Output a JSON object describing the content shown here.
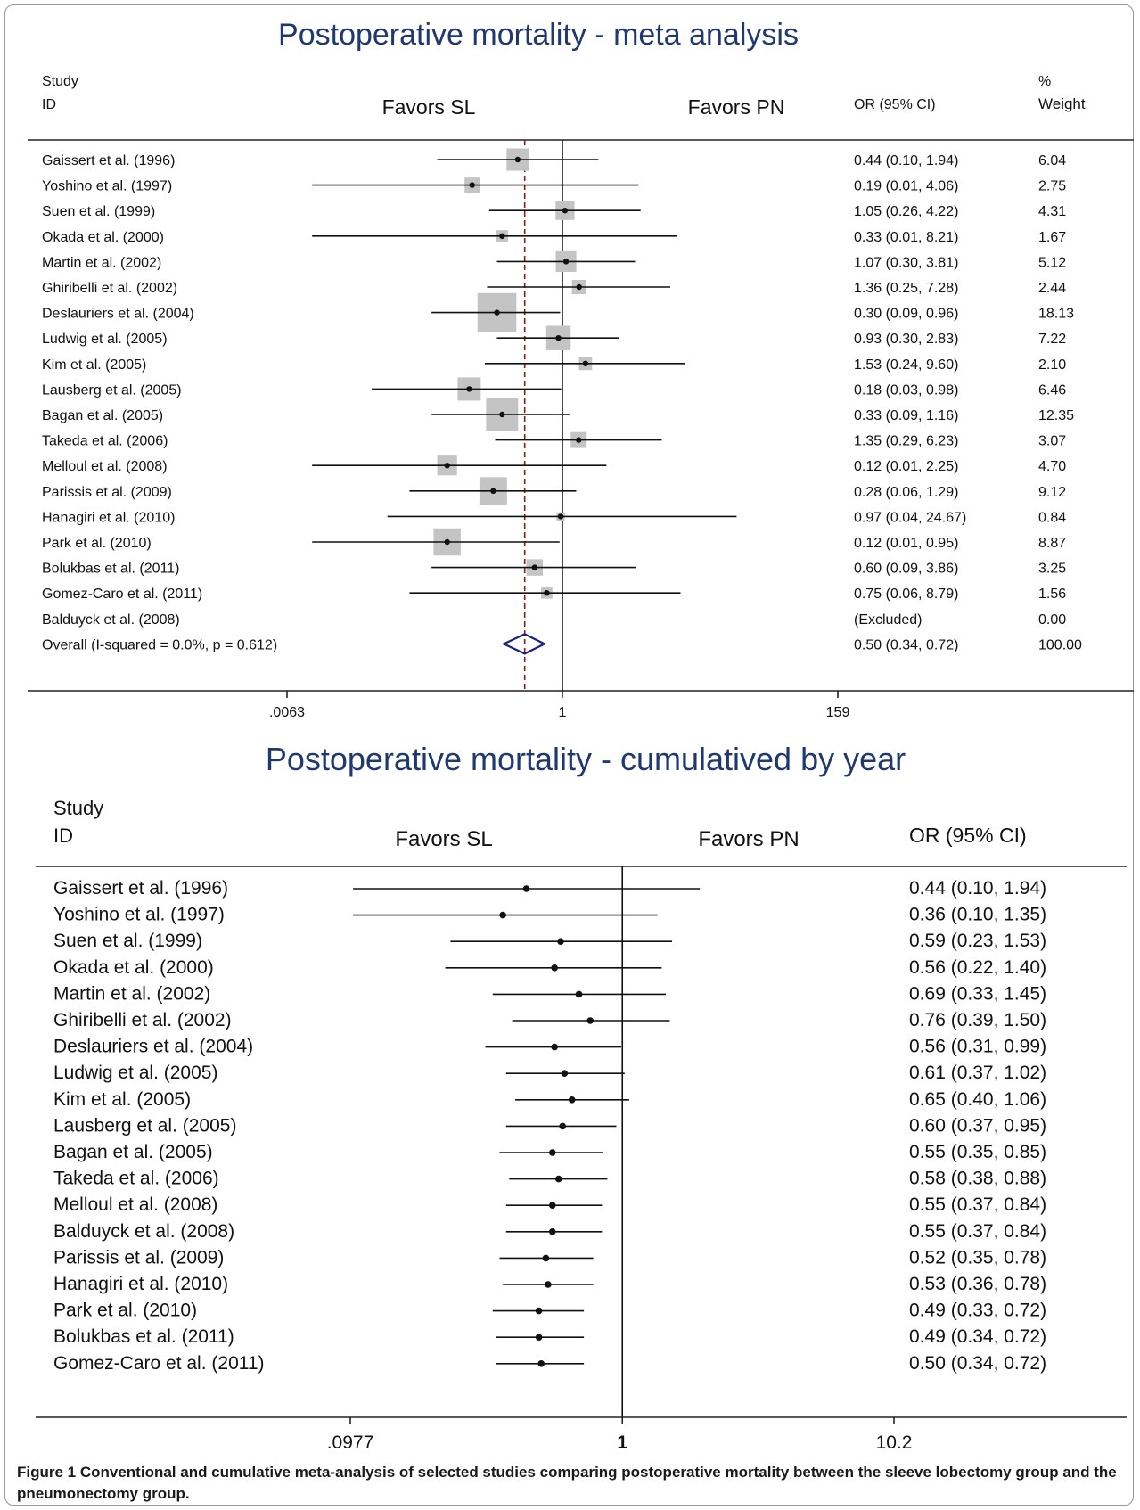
{
  "colors": {
    "title": "#1f3870",
    "box": "#c4c4c4",
    "diamond": "#1a237e",
    "ref_line": "#8b1a1a",
    "text": "#111111"
  },
  "chart_data": [
    {
      "type": "forest",
      "title": "Postoperative mortality - meta analysis",
      "header_study": "Study",
      "header_id": "ID",
      "header_favors_left": "Favors SL",
      "header_favors_right": "Favors PN",
      "header_or": "OR (95% CI)",
      "header_weight_pct": "%",
      "header_weight": "Weight",
      "x_scale": "log",
      "xlim": [
        0.0063,
        159
      ],
      "x_ticks": [
        ".0063",
        "1",
        "159"
      ],
      "x_tick_values": [
        0.0063,
        1,
        159
      ],
      "null_value": 1,
      "pooled_line_value": 0.5,
      "studies": [
        {
          "label": "Gaissert et al. (1996)",
          "or": 0.44,
          "lo": 0.1,
          "hi": 1.94,
          "ci_text": "0.44 (0.10, 1.94)",
          "weight": 6.04,
          "weight_text": "6.04"
        },
        {
          "label": "Yoshino et al. (1997)",
          "or": 0.19,
          "lo": 0.01,
          "hi": 4.06,
          "ci_text": "0.19 (0.01, 4.06)",
          "weight": 2.75,
          "weight_text": "2.75"
        },
        {
          "label": "Suen et al. (1999)",
          "or": 1.05,
          "lo": 0.26,
          "hi": 4.22,
          "ci_text": "1.05 (0.26, 4.22)",
          "weight": 4.31,
          "weight_text": "4.31"
        },
        {
          "label": "Okada et al. (2000)",
          "or": 0.33,
          "lo": 0.01,
          "hi": 8.21,
          "ci_text": "0.33 (0.01, 8.21)",
          "weight": 1.67,
          "weight_text": "1.67"
        },
        {
          "label": "Martin et al. (2002)",
          "or": 1.07,
          "lo": 0.3,
          "hi": 3.81,
          "ci_text": "1.07 (0.30, 3.81)",
          "weight": 5.12,
          "weight_text": "5.12"
        },
        {
          "label": "Ghiribelli et al. (2002)",
          "or": 1.36,
          "lo": 0.25,
          "hi": 7.28,
          "ci_text": "1.36 (0.25, 7.28)",
          "weight": 2.44,
          "weight_text": "2.44"
        },
        {
          "label": "Deslauriers et al. (2004)",
          "or": 0.3,
          "lo": 0.09,
          "hi": 0.96,
          "ci_text": "0.30 (0.09, 0.96)",
          "weight": 18.13,
          "weight_text": "18.13"
        },
        {
          "label": "Ludwig et al. (2005)",
          "or": 0.93,
          "lo": 0.3,
          "hi": 2.83,
          "ci_text": "0.93 (0.30, 2.83)",
          "weight": 7.22,
          "weight_text": "7.22"
        },
        {
          "label": "Kim et al. (2005)",
          "or": 1.53,
          "lo": 0.24,
          "hi": 9.6,
          "ci_text": "1.53 (0.24, 9.60)",
          "weight": 2.1,
          "weight_text": "2.10"
        },
        {
          "label": "Lausberg et al. (2005)",
          "or": 0.18,
          "lo": 0.03,
          "hi": 0.98,
          "ci_text": "0.18 (0.03, 0.98)",
          "weight": 6.46,
          "weight_text": "6.46"
        },
        {
          "label": "Bagan et al. (2005)",
          "or": 0.33,
          "lo": 0.09,
          "hi": 1.16,
          "ci_text": "0.33 (0.09, 1.16)",
          "weight": 12.35,
          "weight_text": "12.35"
        },
        {
          "label": "Takeda et al. (2006)",
          "or": 1.35,
          "lo": 0.29,
          "hi": 6.23,
          "ci_text": "1.35 (0.29, 6.23)",
          "weight": 3.07,
          "weight_text": "3.07"
        },
        {
          "label": "Melloul et al. (2008)",
          "or": 0.12,
          "lo": 0.01,
          "hi": 2.25,
          "ci_text": "0.12 (0.01, 2.25)",
          "weight": 4.7,
          "weight_text": "4.70"
        },
        {
          "label": "Parissis et al. (2009)",
          "or": 0.28,
          "lo": 0.06,
          "hi": 1.29,
          "ci_text": "0.28 (0.06, 1.29)",
          "weight": 9.12,
          "weight_text": "9.12"
        },
        {
          "label": "Hanagiri et al. (2010)",
          "or": 0.97,
          "lo": 0.04,
          "hi": 24.67,
          "ci_text": "0.97 (0.04, 24.67)",
          "weight": 0.84,
          "weight_text": "0.84"
        },
        {
          "label": "Park et al. (2010)",
          "or": 0.12,
          "lo": 0.01,
          "hi": 0.95,
          "ci_text": "0.12 (0.01, 0.95)",
          "weight": 8.87,
          "weight_text": "8.87"
        },
        {
          "label": "Bolukbas et al. (2011)",
          "or": 0.6,
          "lo": 0.09,
          "hi": 3.86,
          "ci_text": "0.60 (0.09, 3.86)",
          "weight": 3.25,
          "weight_text": "3.25"
        },
        {
          "label": "Gomez-Caro et al. (2011)",
          "or": 0.75,
          "lo": 0.06,
          "hi": 8.79,
          "ci_text": "0.75 (0.06, 8.79)",
          "weight": 1.56,
          "weight_text": "1.56"
        },
        {
          "label": "Balduyck et al. (2008)",
          "or": null,
          "lo": null,
          "hi": null,
          "ci_text": "(Excluded)",
          "weight": 0.0,
          "weight_text": "0.00"
        }
      ],
      "overall": {
        "label": "Overall  (I-squared = 0.0%, p = 0.612)",
        "or": 0.5,
        "lo": 0.34,
        "hi": 0.72,
        "ci_text": "0.50 (0.34, 0.72)",
        "weight": 100.0,
        "weight_text": "100.00"
      }
    },
    {
      "type": "forest",
      "title": "Postoperative mortality - cumulatived by year",
      "header_study": "Study",
      "header_id": "ID",
      "header_favors_left": "Favors SL",
      "header_favors_right": "Favors PN",
      "header_or": "OR (95% CI)",
      "x_scale": "log",
      "xlim": [
        0.0977,
        10.2
      ],
      "x_ticks": [
        ".0977",
        "1",
        "10.2"
      ],
      "x_tick_values": [
        0.0977,
        1,
        10.2
      ],
      "null_value": 1,
      "studies": [
        {
          "label": "Gaissert et al. (1996)",
          "or": 0.44,
          "lo": 0.1,
          "hi": 1.94,
          "ci_text": "0.44 (0.10, 1.94)"
        },
        {
          "label": "Yoshino et al. (1997)",
          "or": 0.36,
          "lo": 0.1,
          "hi": 1.35,
          "ci_text": "0.36 (0.10, 1.35)"
        },
        {
          "label": "Suen et al. (1999)",
          "or": 0.59,
          "lo": 0.23,
          "hi": 1.53,
          "ci_text": "0.59 (0.23, 1.53)"
        },
        {
          "label": "Okada et al. (2000)",
          "or": 0.56,
          "lo": 0.22,
          "hi": 1.4,
          "ci_text": "0.56 (0.22, 1.40)"
        },
        {
          "label": "Martin et al. (2002)",
          "or": 0.69,
          "lo": 0.33,
          "hi": 1.45,
          "ci_text": "0.69 (0.33, 1.45)"
        },
        {
          "label": "Ghiribelli et al. (2002)",
          "or": 0.76,
          "lo": 0.39,
          "hi": 1.5,
          "ci_text": "0.76 (0.39, 1.50)"
        },
        {
          "label": "Deslauriers et al. (2004)",
          "or": 0.56,
          "lo": 0.31,
          "hi": 0.99,
          "ci_text": "0.56 (0.31, 0.99)"
        },
        {
          "label": "Ludwig et al. (2005)",
          "or": 0.61,
          "lo": 0.37,
          "hi": 1.02,
          "ci_text": "0.61 (0.37, 1.02)"
        },
        {
          "label": "Kim et al. (2005)",
          "or": 0.65,
          "lo": 0.4,
          "hi": 1.06,
          "ci_text": "0.65 (0.40, 1.06)"
        },
        {
          "label": "Lausberg et al. (2005)",
          "or": 0.6,
          "lo": 0.37,
          "hi": 0.95,
          "ci_text": "0.60 (0.37, 0.95)"
        },
        {
          "label": "Bagan et al. (2005)",
          "or": 0.55,
          "lo": 0.35,
          "hi": 0.85,
          "ci_text": "0.55 (0.35, 0.85)"
        },
        {
          "label": "Takeda et al. (2006)",
          "or": 0.58,
          "lo": 0.38,
          "hi": 0.88,
          "ci_text": "0.58 (0.38, 0.88)"
        },
        {
          "label": "Melloul et al. (2008)",
          "or": 0.55,
          "lo": 0.37,
          "hi": 0.84,
          "ci_text": "0.55 (0.37, 0.84)"
        },
        {
          "label": "Balduyck et al. (2008)",
          "or": 0.55,
          "lo": 0.37,
          "hi": 0.84,
          "ci_text": "0.55 (0.37, 0.84)"
        },
        {
          "label": "Parissis et al. (2009)",
          "or": 0.52,
          "lo": 0.35,
          "hi": 0.78,
          "ci_text": "0.52 (0.35, 0.78)"
        },
        {
          "label": "Hanagiri et al. (2010)",
          "or": 0.53,
          "lo": 0.36,
          "hi": 0.78,
          "ci_text": "0.53 (0.36, 0.78)"
        },
        {
          "label": "Park et al. (2010)",
          "or": 0.49,
          "lo": 0.33,
          "hi": 0.72,
          "ci_text": "0.49 (0.33, 0.72)"
        },
        {
          "label": "Bolukbas et al. (2011)",
          "or": 0.49,
          "lo": 0.34,
          "hi": 0.72,
          "ci_text": "0.49 (0.34, 0.72)"
        },
        {
          "label": "Gomez-Caro et al. (2011)",
          "or": 0.5,
          "lo": 0.34,
          "hi": 0.72,
          "ci_text": "0.50 (0.34, 0.72)"
        }
      ]
    }
  ],
  "caption": {
    "lead": "Figure 1",
    "text": " Conventional and cumulative meta-analysis of selected studies comparing postoperative mortality between the sleeve lobectomy group and the pneumonectomy group."
  }
}
